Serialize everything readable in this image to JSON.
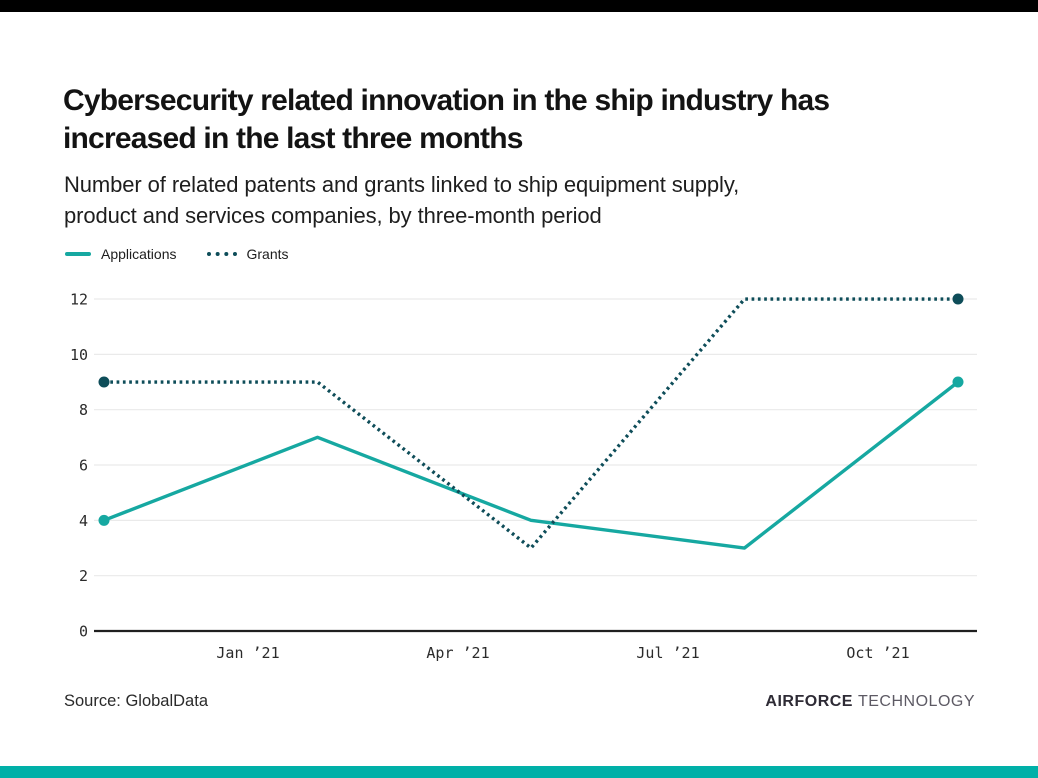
{
  "page": {
    "top_bar_color": "#000000",
    "bottom_bar_color": "#00b0a8",
    "background": "#ffffff"
  },
  "header": {
    "title_lines": [
      "Cybersecurity related innovation in the ship industry has",
      "increased in the last three months"
    ],
    "subtitle_lines": [
      "Number of related patents and grants linked to ship equipment supply,",
      "product and services companies, by three-month period"
    ]
  },
  "chart_data": {
    "type": "line",
    "title": "Cybersecurity related innovation in the ship industry has increased in the last three months",
    "subtitle": "Number of related patents and grants linked to ship equipment supply, product and services companies, by three-month period",
    "x_tick_labels": [
      "Jan ’21",
      "Apr ’21",
      "Jul ’21",
      "Oct ’21"
    ],
    "series": [
      {
        "name": "Applications",
        "values": [
          4,
          7,
          4,
          3,
          9
        ],
        "color": "#16a8a1",
        "line_style": "solid"
      },
      {
        "name": "Grants",
        "values": [
          9,
          9,
          3,
          12,
          12
        ],
        "color": "#0e4d59",
        "line_style": "dotted"
      }
    ],
    "ylim": [
      0,
      12
    ],
    "yticks": [
      0,
      2,
      4,
      6,
      8,
      10,
      12
    ],
    "grid": "horizontal",
    "legend_position": "top-left",
    "markers": "endpoints-only",
    "gridline_color": "#eaeaea",
    "baseline_color": "#1f1f1f"
  },
  "footer": {
    "source": "Source: GlobalData",
    "brand_bold": "AIRFORCE",
    "brand_light": "TECHNOLOGY"
  }
}
